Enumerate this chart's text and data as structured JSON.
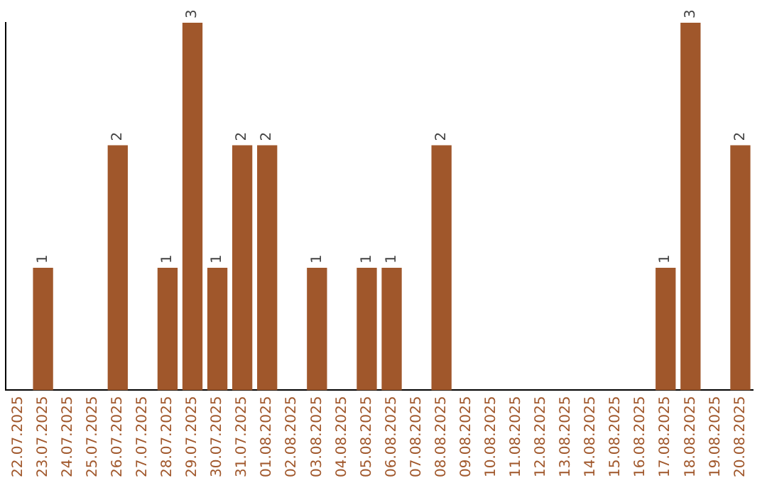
{
  "chart_data": {
    "type": "bar",
    "categories": [
      "22.07.2025",
      "23.07.2025",
      "24.07.2025",
      "25.07.2025",
      "26.07.2025",
      "27.07.2025",
      "28.07.2025",
      "29.07.2025",
      "30.07.2025",
      "31.07.2025",
      "01.08.2025",
      "02.08.2025",
      "03.08.2025",
      "04.08.2025",
      "05.08.2025",
      "06.08.2025",
      "07.08.2025",
      "08.08.2025",
      "09.08.2025",
      "10.08.2025",
      "11.08.2025",
      "12.08.2025",
      "13.08.2025",
      "14.08.2025",
      "15.08.2025",
      "16.08.2025",
      "17.08.2025",
      "18.08.2025",
      "19.08.2025",
      "20.08.2025"
    ],
    "values": [
      0,
      1,
      0,
      0,
      2,
      0,
      1,
      3,
      1,
      2,
      2,
      0,
      1,
      0,
      1,
      1,
      0,
      2,
      0,
      0,
      0,
      0,
      0,
      0,
      0,
      0,
      1,
      3,
      0,
      2
    ],
    "value_labels": [
      null,
      "1",
      null,
      null,
      "2",
      null,
      "1",
      "3",
      "1",
      "2",
      "2",
      null,
      "1",
      null,
      "1",
      "1",
      null,
      "2",
      null,
      null,
      null,
      null,
      null,
      null,
      null,
      null,
      "1",
      "3",
      null,
      "2"
    ],
    "color": "#a0572b",
    "tick_labels": "x",
    "grid": false,
    "legend": false
  }
}
